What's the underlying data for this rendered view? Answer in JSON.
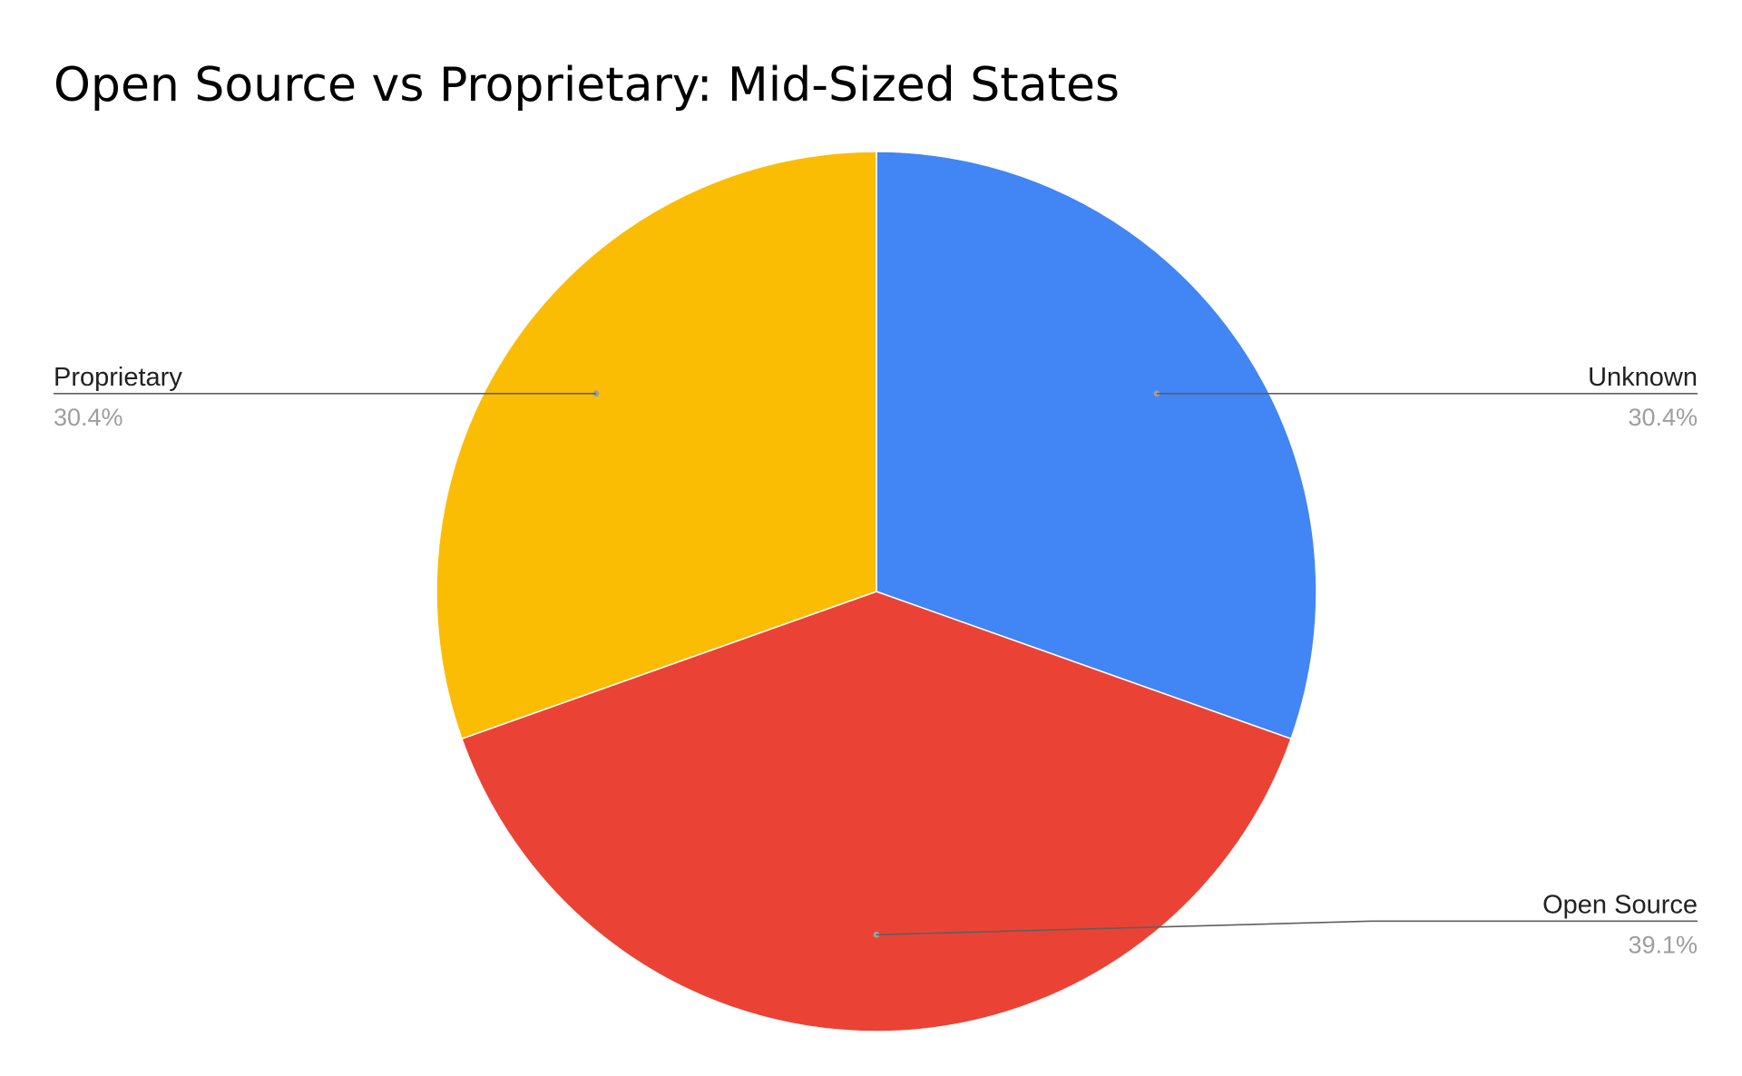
{
  "chart_data": {
    "type": "pie",
    "title": "Open Source vs Proprietary: Mid-Sized States",
    "slices": [
      {
        "label": "Unknown",
        "value": 30.4,
        "percent_label": "30.4%",
        "color": "#4285F4"
      },
      {
        "label": "Open Source",
        "value": 39.1,
        "percent_label": "39.1%",
        "color": "#EA4335"
      },
      {
        "label": "Proprietary",
        "value": 30.4,
        "percent_label": "30.4%",
        "color": "#FBBC04"
      }
    ],
    "start_angle": "top",
    "direction": "clockwise",
    "legend": "none"
  }
}
